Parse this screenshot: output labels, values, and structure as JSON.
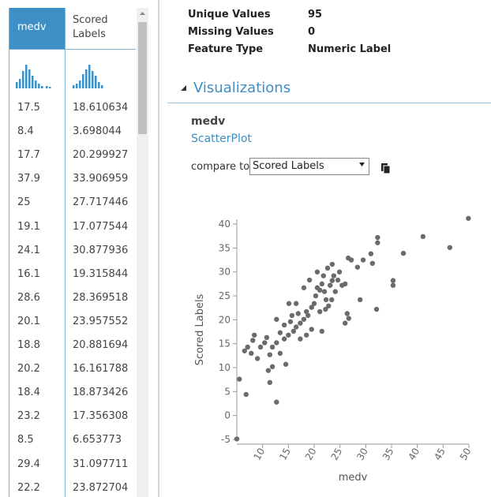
{
  "stats": [
    {
      "label": "Unique Values",
      "value": "95"
    },
    {
      "label": "Missing Values",
      "value": "0"
    },
    {
      "label": "Feature Type",
      "value": "Numeric Label"
    }
  ],
  "table": {
    "columns": [
      "medv",
      "Scored Labels"
    ],
    "rows": [
      [
        "17.5",
        "18.610634"
      ],
      [
        "8.4",
        "3.698044"
      ],
      [
        "17.7",
        "20.299927"
      ],
      [
        "37.9",
        "33.906959"
      ],
      [
        "25",
        "27.717446"
      ],
      [
        "19.1",
        "17.077544"
      ],
      [
        "24.1",
        "30.877936"
      ],
      [
        "16.1",
        "19.315844"
      ],
      [
        "28.6",
        "28.369518"
      ],
      [
        "20.1",
        "23.957552"
      ],
      [
        "18.8",
        "20.881694"
      ],
      [
        "20.2",
        "16.161788"
      ],
      [
        "18.4",
        "18.873426"
      ],
      [
        "23.2",
        "17.356308"
      ],
      [
        "8.5",
        "6.653773"
      ],
      [
        "29.4",
        "31.097711"
      ],
      [
        "22.2",
        "23.872704"
      ]
    ]
  },
  "visualizations": {
    "heading": "Visualizations",
    "column": "medv",
    "plot_type": "ScatterPlot",
    "compare_label": "compare to",
    "compare_value": "Scored Labels"
  },
  "chart_data": {
    "type": "scatter",
    "x_label": "medv",
    "y_label": "Scored Labels",
    "color": "#6b6b6b",
    "x": [
      49.9,
      46.3,
      41.1,
      37.3,
      35.3,
      35.3,
      32.3,
      32.3,
      32.1,
      31.3,
      31.0,
      29.5,
      28.4,
      27.2,
      26.6,
      28.9,
      26.4,
      26.0,
      26.7,
      25.4,
      26.0,
      24.9,
      24.6,
      22.2,
      21.1,
      23.8,
      23.5,
      23.1,
      24.1,
      23.4,
      22.8,
      22.3,
      22.0,
      21.5,
      21.1,
      20.3,
      20.0,
      19.5,
      18.8,
      18.5,
      18.0,
      17.3,
      16.9,
      16.5,
      16.0,
      15.4,
      15.0,
      14.2,
      13.4,
      12.7,
      11.9,
      11.4,
      10.8,
      10.4,
      9.6,
      9.0,
      8.4,
      8.1,
      7.1,
      6.5,
      12.7,
      14.2,
      15.1,
      15.7,
      16.5,
      18.0,
      19.1,
      20.6,
      21.8,
      22.6,
      23.5,
      20.6,
      17.3,
      18.5,
      19.5,
      21.5,
      14.5,
      13.4,
      11.9,
      11.4,
      12.7,
      6.8,
      5.5,
      5.0,
      7.8,
      11.1
    ],
    "y": [
      41.2,
      35.1,
      37.4,
      33.9,
      28.2,
      27.2,
      37.2,
      36.1,
      22.2,
      31.8,
      33.8,
      32.5,
      31.0,
      32.5,
      32.9,
      24.2,
      21.3,
      19.3,
      20.3,
      27.2,
      27.5,
      30.0,
      28.3,
      22.2,
      21.7,
      29.2,
      28.2,
      27.2,
      25.9,
      24.2,
      22.9,
      24.2,
      25.9,
      27.5,
      26.2,
      25.0,
      23.4,
      22.6,
      20.9,
      21.7,
      20.1,
      19.3,
      21.3,
      18.5,
      17.6,
      19.6,
      16.8,
      16.0,
      17.3,
      15.2,
      14.3,
      12.7,
      16.3,
      15.2,
      14.3,
      11.9,
      16.8,
      15.7,
      14.3,
      13.5,
      20.1,
      18.9,
      23.4,
      20.9,
      23.4,
      26.7,
      28.3,
      30.0,
      29.2,
      30.8,
      31.6,
      26.7,
      16.0,
      16.8,
      18.0,
      17.6,
      10.7,
      13.0,
      10.2,
      6.9,
      2.8,
      4.4,
      7.6,
      -4.9,
      13.0,
      9.4
    ],
    "xlim": [
      5,
      50
    ],
    "ylim": [
      -5,
      41
    ],
    "xticks": [
      10,
      15,
      20,
      25,
      30,
      35,
      40,
      45,
      50
    ],
    "yticks": [
      -5,
      0,
      5,
      10,
      15,
      20,
      25,
      30,
      35,
      40
    ]
  }
}
